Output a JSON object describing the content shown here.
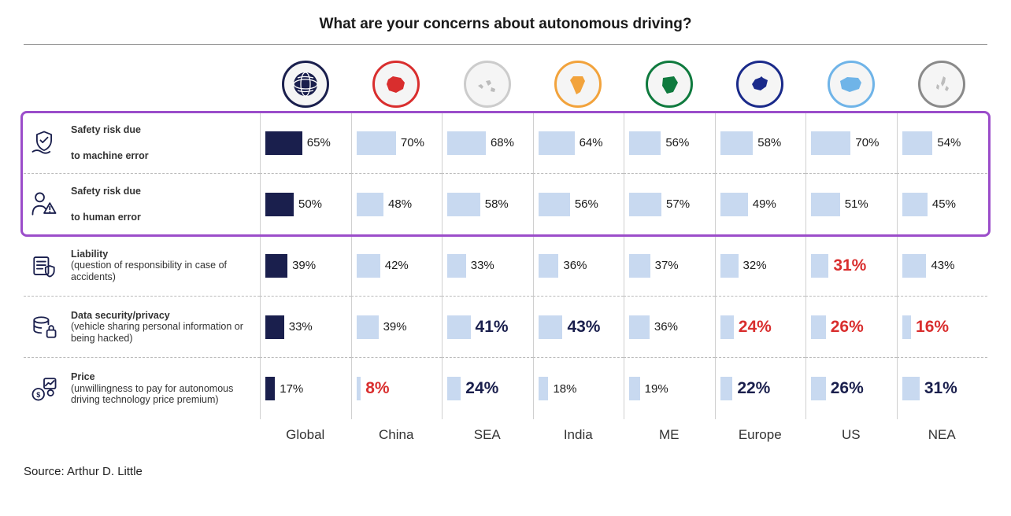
{
  "title": "What are your concerns about autonomous driving?",
  "source": "Source: Arthur D. Little",
  "colors": {
    "global_bar": "#1a1f4d",
    "region_bar": "#c8d9f0",
    "emphasis_navy": "#1a1f4d",
    "emphasis_red": "#d92e2e",
    "highlight_border": "#9b4dca",
    "divider": "#bbbbbb",
    "column_divider": "#d0d0d0"
  },
  "bar_max_pct": 100,
  "regions": [
    {
      "label": "Global",
      "ring": "#1a1f4d",
      "icon": "globe",
      "fill": "#1a1f4d"
    },
    {
      "label": "China",
      "ring": "#d92e2e",
      "icon": "map-china",
      "fill": "#d92e2e"
    },
    {
      "label": "SEA",
      "ring": "#cccccc",
      "icon": "map-sea",
      "fill": "#bcbcbc"
    },
    {
      "label": "India",
      "ring": "#f2a33c",
      "icon": "map-india",
      "fill": "#f2a33c"
    },
    {
      "label": "ME",
      "ring": "#0f7a3e",
      "icon": "map-me",
      "fill": "#0f7a3e"
    },
    {
      "label": "Europe",
      "ring": "#1a2a8a",
      "icon": "map-europe",
      "fill": "#1a2a8a"
    },
    {
      "label": "US",
      "ring": "#6fb4e8",
      "icon": "map-us",
      "fill": "#6fb4e8"
    },
    {
      "label": "NEA",
      "ring": "#8a8a8a",
      "icon": "map-nea",
      "fill": "#bcbcbc"
    }
  ],
  "rows": [
    {
      "icon": "shield-hand-icon",
      "title": "Safety risk due",
      "title2": "to machine error",
      "subtitle": "",
      "highlighted": true,
      "values": [
        {
          "pct": 65,
          "label": "65%",
          "emph": false
        },
        {
          "pct": 70,
          "label": "70%",
          "emph": false
        },
        {
          "pct": 68,
          "label": "68%",
          "emph": false
        },
        {
          "pct": 64,
          "label": "64%",
          "emph": false
        },
        {
          "pct": 56,
          "label": "56%",
          "emph": false
        },
        {
          "pct": 58,
          "label": "58%",
          "emph": false
        },
        {
          "pct": 70,
          "label": "70%",
          "emph": false
        },
        {
          "pct": 54,
          "label": "54%",
          "emph": false
        }
      ]
    },
    {
      "icon": "person-warn-icon",
      "title": "Safety risk due",
      "title2": "to human error",
      "subtitle": "",
      "highlighted": true,
      "values": [
        {
          "pct": 50,
          "label": "50%",
          "emph": false
        },
        {
          "pct": 48,
          "label": "48%",
          "emph": false
        },
        {
          "pct": 58,
          "label": "58%",
          "emph": false
        },
        {
          "pct": 56,
          "label": "56%",
          "emph": false
        },
        {
          "pct": 57,
          "label": "57%",
          "emph": false
        },
        {
          "pct": 49,
          "label": "49%",
          "emph": false
        },
        {
          "pct": 51,
          "label": "51%",
          "emph": false
        },
        {
          "pct": 45,
          "label": "45%",
          "emph": false
        }
      ]
    },
    {
      "icon": "liability-icon",
      "title": "Liability",
      "title2": "",
      "subtitle": "(question of responsibility in case of accidents)",
      "highlighted": false,
      "values": [
        {
          "pct": 39,
          "label": "39%",
          "emph": false
        },
        {
          "pct": 42,
          "label": "42%",
          "emph": false
        },
        {
          "pct": 33,
          "label": "33%",
          "emph": false
        },
        {
          "pct": 36,
          "label": "36%",
          "emph": false
        },
        {
          "pct": 37,
          "label": "37%",
          "emph": false
        },
        {
          "pct": 32,
          "label": "32%",
          "emph": false
        },
        {
          "pct": 31,
          "label": "31%",
          "emph": true,
          "color": "#d92e2e"
        },
        {
          "pct": 43,
          "label": "43%",
          "emph": false
        }
      ]
    },
    {
      "icon": "data-lock-icon",
      "title": "Data security/privacy",
      "title2": "",
      "subtitle": "(vehicle sharing personal information or being hacked)",
      "highlighted": false,
      "values": [
        {
          "pct": 33,
          "label": "33%",
          "emph": false
        },
        {
          "pct": 39,
          "label": "39%",
          "emph": false
        },
        {
          "pct": 41,
          "label": "41%",
          "emph": true,
          "color": "#1a1f4d"
        },
        {
          "pct": 43,
          "label": "43%",
          "emph": true,
          "color": "#1a1f4d"
        },
        {
          "pct": 36,
          "label": "36%",
          "emph": false
        },
        {
          "pct": 24,
          "label": "24%",
          "emph": true,
          "color": "#d92e2e"
        },
        {
          "pct": 26,
          "label": "26%",
          "emph": true,
          "color": "#d92e2e"
        },
        {
          "pct": 16,
          "label": "16%",
          "emph": true,
          "color": "#d92e2e"
        }
      ]
    },
    {
      "icon": "price-icon",
      "title": "Price",
      "title2": "",
      "subtitle": "(unwillingness to pay for autonomous driving technology price premium)",
      "highlighted": false,
      "values": [
        {
          "pct": 17,
          "label": "17%",
          "emph": false
        },
        {
          "pct": 8,
          "label": "8%",
          "emph": true,
          "color": "#d92e2e"
        },
        {
          "pct": 24,
          "label": "24%",
          "emph": true,
          "color": "#1a1f4d"
        },
        {
          "pct": 18,
          "label": "18%",
          "emph": false
        },
        {
          "pct": 19,
          "label": "19%",
          "emph": false
        },
        {
          "pct": 22,
          "label": "22%",
          "emph": true,
          "color": "#1a1f4d"
        },
        {
          "pct": 26,
          "label": "26%",
          "emph": true,
          "color": "#1a1f4d"
        },
        {
          "pct": 31,
          "label": "31%",
          "emph": true,
          "color": "#1a1f4d"
        }
      ]
    }
  ]
}
